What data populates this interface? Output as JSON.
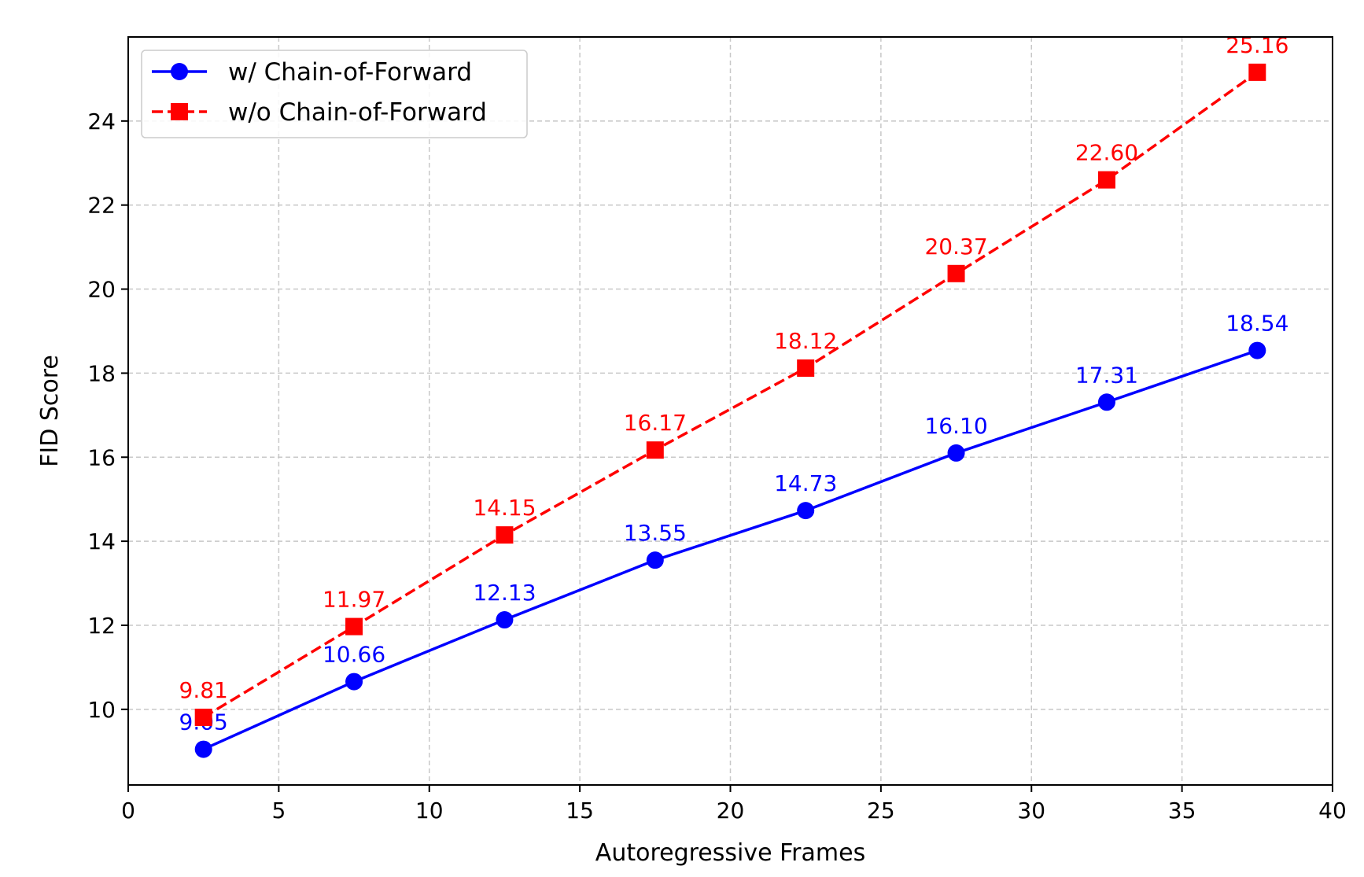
{
  "chart_data": {
    "type": "line",
    "xlabel": "Autoregressive Frames",
    "ylabel": "FID Score",
    "xlim": [
      0,
      40
    ],
    "ylim": [
      8.2,
      26.0
    ],
    "xticks": [
      0,
      5,
      10,
      15,
      20,
      25,
      30,
      35,
      40
    ],
    "yticks": [
      10,
      12,
      14,
      16,
      18,
      20,
      22,
      24
    ],
    "grid": true,
    "legend_position": "top-left",
    "x": [
      2.5,
      7.5,
      12.5,
      17.5,
      22.5,
      27.5,
      32.5,
      37.5
    ],
    "series": [
      {
        "name": "w/ Chain-of-Forward",
        "color": "#0000ff",
        "marker": "circle",
        "linestyle": "solid",
        "values": [
          9.05,
          10.66,
          12.13,
          13.55,
          14.73,
          16.1,
          17.31,
          18.54
        ],
        "labels": [
          "9.05",
          "10.66",
          "12.13",
          "13.55",
          "14.73",
          "16.10",
          "17.31",
          "18.54"
        ]
      },
      {
        "name": "w/o Chain-of-Forward",
        "color": "#ff0000",
        "marker": "square",
        "linestyle": "dashed",
        "values": [
          9.81,
          11.97,
          14.15,
          16.17,
          18.12,
          20.37,
          22.6,
          25.16
        ],
        "labels": [
          "9.81",
          "11.97",
          "14.15",
          "16.17",
          "18.12",
          "20.37",
          "22.60",
          "25.16"
        ]
      }
    ]
  }
}
